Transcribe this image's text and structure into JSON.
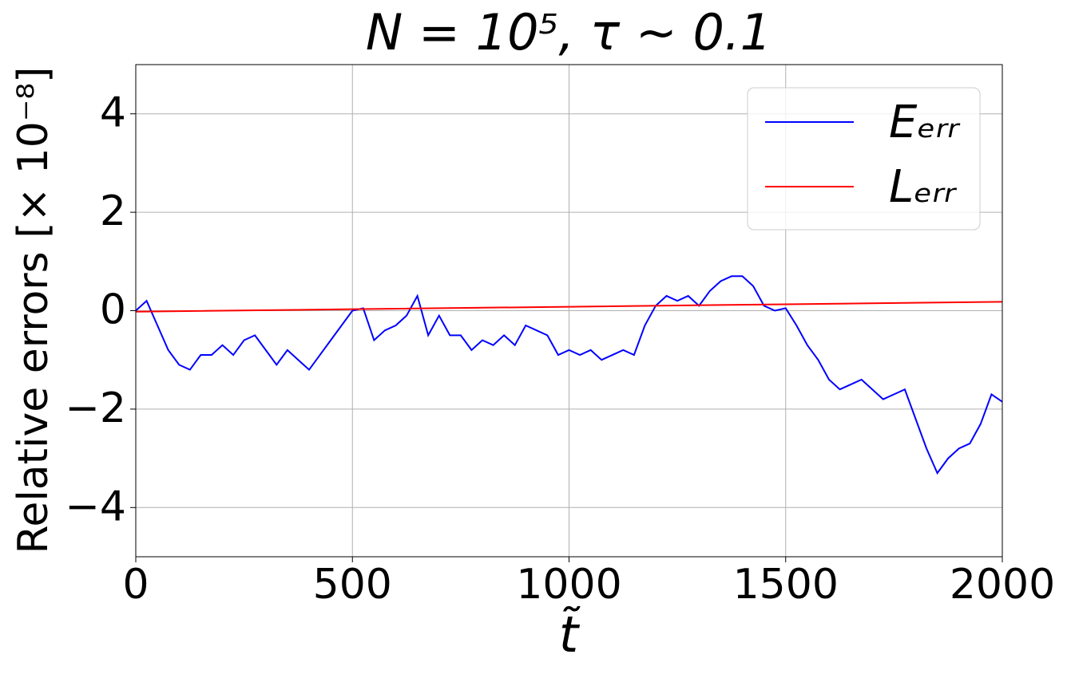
{
  "chart_data": {
    "type": "line",
    "title": "N = 10⁵, τ ~ 0.1",
    "x_label": "t̃",
    "y_label": "Relative errors [× 10⁻⁸]",
    "x": [
      0,
      25,
      50,
      75,
      100,
      125,
      150,
      175,
      200,
      225,
      250,
      275,
      300,
      325,
      350,
      375,
      400,
      425,
      450,
      475,
      500,
      525,
      550,
      575,
      600,
      625,
      650,
      675,
      700,
      725,
      750,
      775,
      800,
      825,
      850,
      875,
      900,
      925,
      950,
      975,
      1000,
      1025,
      1050,
      1075,
      1100,
      1125,
      1150,
      1175,
      1200,
      1225,
      1250,
      1275,
      1300,
      1325,
      1350,
      1375,
      1400,
      1425,
      1450,
      1475,
      1500,
      1525,
      1550,
      1575,
      1600,
      1625,
      1650,
      1675,
      1700,
      1725,
      1750,
      1775,
      1800,
      1825,
      1850,
      1875,
      1900,
      1925,
      1950,
      1975,
      2000
    ],
    "series": [
      {
        "name": "Eₑᵣᵣ",
        "color": "#0000ff",
        "values": [
          0,
          0.2,
          -0.3,
          -0.8,
          -1.1,
          -1.2,
          -0.9,
          -0.9,
          -0.7,
          -0.9,
          -0.6,
          -0.5,
          -0.8,
          -1.1,
          -0.8,
          -1.0,
          -1.2,
          -0.9,
          -0.6,
          -0.3,
          0.0,
          0.05,
          -0.6,
          -0.4,
          -0.3,
          -0.1,
          0.3,
          -0.5,
          -0.1,
          -0.5,
          -0.5,
          -0.8,
          -0.6,
          -0.7,
          -0.5,
          -0.7,
          -0.3,
          -0.4,
          -0.5,
          -0.9,
          -0.8,
          -0.9,
          -0.8,
          -1.0,
          -0.9,
          -0.8,
          -0.9,
          -0.3,
          0.1,
          0.3,
          0.2,
          0.3,
          0.1,
          0.4,
          0.6,
          0.7,
          0.7,
          0.5,
          0.1,
          0.0,
          0.05,
          -0.3,
          -0.7,
          -1.0,
          -1.4,
          -1.6,
          -1.5,
          -1.4,
          -1.6,
          -1.8,
          -1.7,
          -1.6,
          -2.2,
          -2.8,
          -3.3,
          -3.0,
          -2.8,
          -2.7,
          -2.3,
          -1.7,
          -1.85
        ]
      },
      {
        "name": "Lₑᵣᵣ",
        "color": "#ff0000",
        "x": [
          0,
          500,
          1000,
          1500,
          2000
        ],
        "values": [
          -0.02,
          0.03,
          0.08,
          0.13,
          0.18
        ]
      }
    ],
    "xlim": [
      0,
      2000
    ],
    "xticks": [
      0,
      500,
      1000,
      1500,
      2000
    ],
    "ylim": [
      -5,
      5
    ],
    "yticks": [
      {
        "value": -4,
        "label": "−4"
      },
      {
        "value": -2,
        "label": "−2"
      },
      0,
      2,
      4
    ],
    "grid": true,
    "legend": "upper right"
  }
}
